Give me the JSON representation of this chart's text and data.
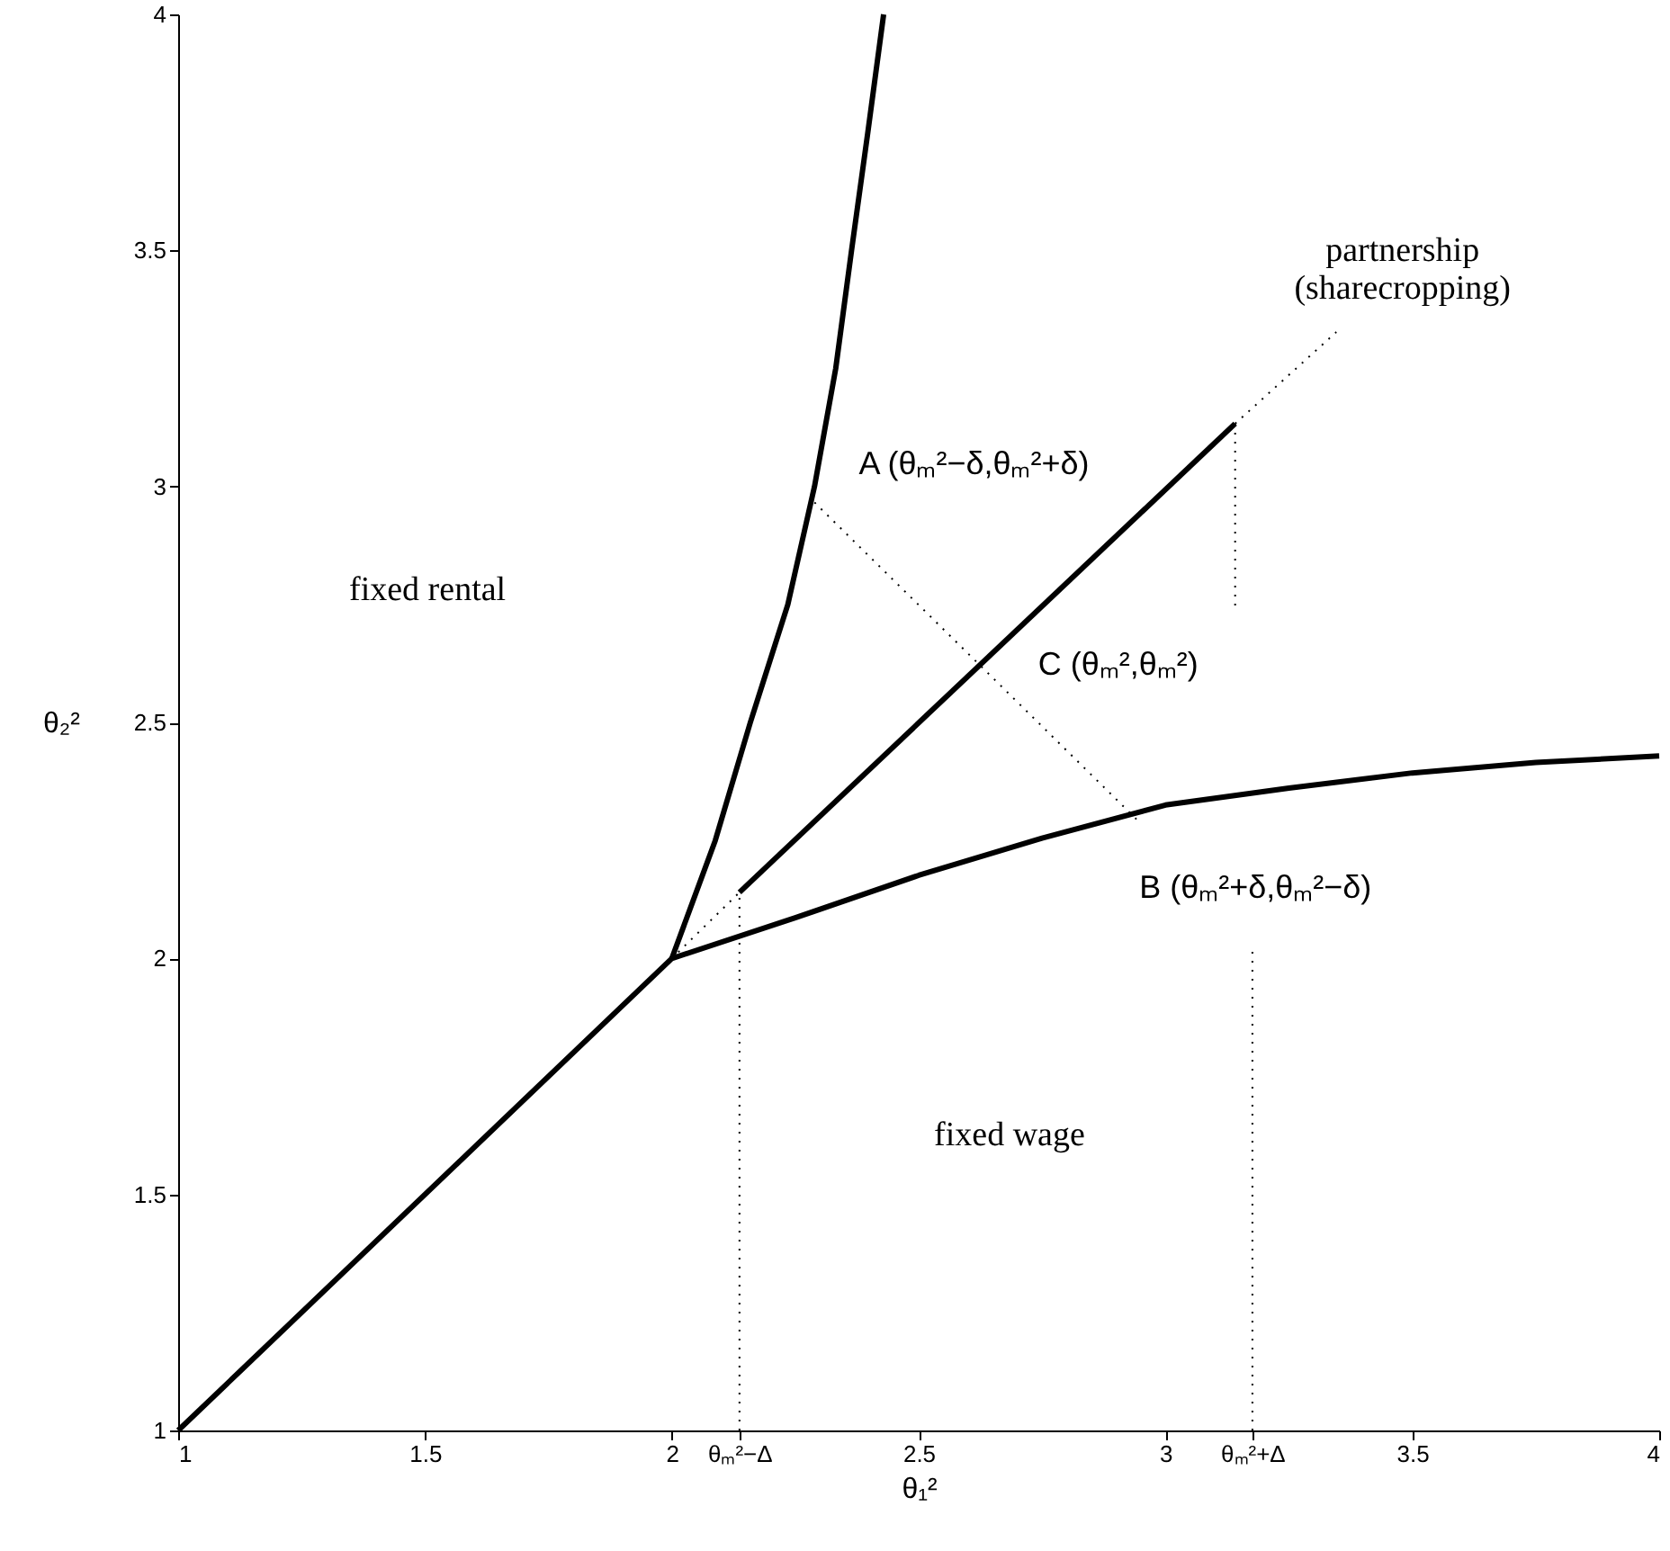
{
  "chart_data": {
    "type": "line",
    "xlabel": "θ₁²",
    "ylabel": "θ₂²",
    "xlim": [
      1,
      4
    ],
    "ylim": [
      1,
      4
    ],
    "xticks": [
      1,
      1.5,
      2,
      {
        "value": 2.137,
        "label": "θₘ²−Δ"
      },
      2.5,
      3,
      {
        "value": 3.176,
        "label": "θₘ²+Δ"
      },
      3.5,
      4
    ],
    "yticks": [
      1,
      1.5,
      2,
      2.5,
      3,
      3.5,
      4
    ],
    "grid": false,
    "marker": "none",
    "series": [
      {
        "color": "#000000",
        "line_style": "solid",
        "x": [
          2,
          2.088,
          2.159,
          2.235,
          2.289,
          2.332,
          2.364,
          2.397,
          2.429
        ],
        "values": [
          2,
          2.25,
          2.5,
          2.75,
          3,
          3.25,
          3.5,
          3.75,
          4
        ]
      },
      {
        "color": "#000000",
        "line_style": "solid",
        "x": [
          1,
          2,
          2.25,
          2.5,
          2.75,
          3,
          3.25,
          3.5,
          3.75,
          4
        ],
        "values": [
          1,
          2,
          2.086,
          2.176,
          2.255,
          2.325,
          2.361,
          2.393,
          2.415,
          2.429
        ]
      },
      {
        "color": "#000000",
        "line_style": "solid",
        "x": [
          2.137,
          3.141
        ],
        "values": [
          2.14,
          3.133
        ]
      },
      {
        "color": "#000000",
        "line_style": "dotted",
        "x": [
          2.289,
          2.943
        ],
        "values": [
          2.966,
          2.293
        ]
      },
      {
        "color": "#000000",
        "line_style": "dotted",
        "x": [
          2,
          2.137
        ],
        "values": [
          2,
          2.14
        ]
      },
      {
        "color": "#000000",
        "line_style": "dotted",
        "x": [
          3.141,
          3.346
        ],
        "values": [
          3.133,
          3.327
        ]
      },
      {
        "color": "#000000",
        "line_style": "dotted",
        "x": [
          2.137,
          2.137
        ],
        "values": [
          1,
          2.14
        ]
      },
      {
        "color": "#000000",
        "line_style": "dotted",
        "x": [
          3.141,
          3.141
        ],
        "values": [
          3.133,
          2.738
        ]
      },
      {
        "color": "#000000",
        "line_style": "dotted",
        "x": [
          3.176,
          3.176
        ],
        "values": [
          1,
          2.023
        ]
      }
    ],
    "annotations": [
      "A (θₘ²−δ,θₘ²+δ)",
      "C (θₘ²,θₘ²)",
      "B (θₘ²+δ,θₘ²−δ)",
      "fixed rental",
      "fixed wage",
      "partnership\n(sharecropping)"
    ]
  }
}
